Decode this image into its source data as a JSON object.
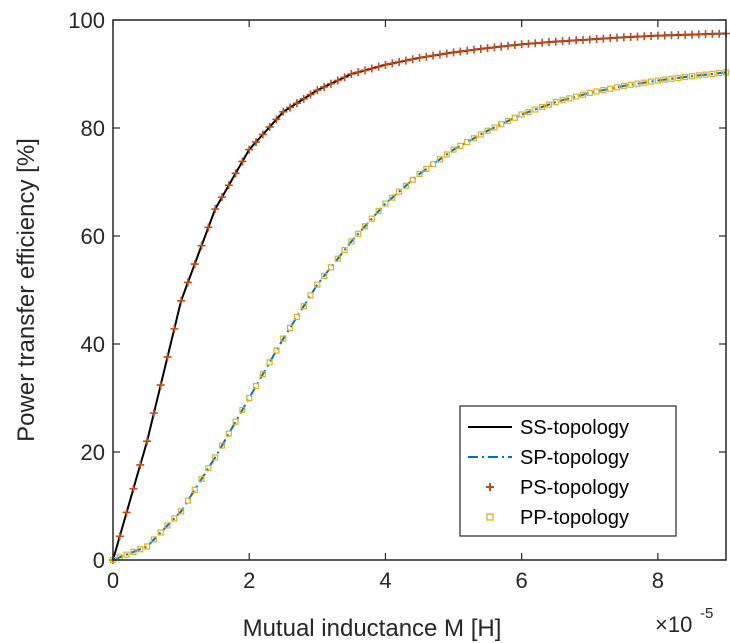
{
  "chart_data": {
    "type": "line",
    "title": "",
    "xlabel": "Mutual inductance M [H]",
    "ylabel": "Power transfer efficiency [%]",
    "x_exponent_label": "×10",
    "x_exponent_power": "-5",
    "xlim": [
      0,
      9
    ],
    "ylim": [
      0,
      100
    ],
    "xticks": [
      "0",
      "2",
      "4",
      "6",
      "8"
    ],
    "yticks": [
      "0",
      "20",
      "40",
      "60",
      "80",
      "100"
    ],
    "grid": false,
    "legend_position": "bottom-right",
    "x": [
      0,
      0.5,
      1,
      1.5,
      2,
      2.5,
      3,
      3.5,
      4,
      4.5,
      5,
      5.5,
      6,
      6.5,
      7,
      7.5,
      8,
      8.5,
      9
    ],
    "series": [
      {
        "name": "SS-topology",
        "color": "#000000",
        "style": "solid",
        "values": [
          0,
          22,
          48,
          65,
          76,
          83,
          87,
          90,
          91.7,
          93,
          94,
          94.8,
          95.5,
          96,
          96.4,
          96.8,
          97.1,
          97.3,
          97.5
        ]
      },
      {
        "name": "SP-topology",
        "color": "#0072BD",
        "style": "dashdot",
        "values": [
          0,
          2.5,
          9,
          19,
          30,
          41,
          51,
          59,
          66,
          71.5,
          76,
          79.5,
          82.5,
          84.8,
          86.5,
          87.8,
          88.8,
          89.6,
          90.3
        ]
      },
      {
        "name": "PS-topology",
        "color": "#C04A1A",
        "marker": "plus",
        "values": [
          0,
          22,
          48,
          65,
          76,
          83,
          87,
          90,
          91.7,
          93,
          94,
          94.8,
          95.5,
          96,
          96.4,
          96.8,
          97.1,
          97.3,
          97.5
        ]
      },
      {
        "name": "PP-topology",
        "color": "#E0B020",
        "marker": "square",
        "values": [
          0,
          2.5,
          9,
          19,
          30,
          41,
          51,
          59,
          66,
          71.5,
          76,
          79.5,
          82.5,
          84.8,
          86.5,
          87.8,
          88.8,
          89.6,
          90.3
        ]
      }
    ]
  }
}
